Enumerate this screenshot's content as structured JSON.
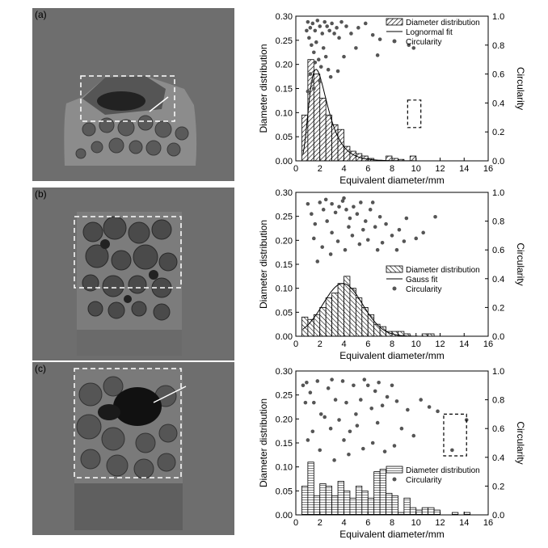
{
  "panel_labels": [
    "(a)",
    "(b)",
    "(c)"
  ],
  "chart_data": [
    {
      "type": "bar",
      "panel": "(a)",
      "xlabel": "Equivalent diameter/mm",
      "ylabel": "Diameter distribution",
      "y2label": "Circularity",
      "xlim": [
        0,
        16
      ],
      "ylim": [
        0,
        0.3
      ],
      "y2lim": [
        0,
        1.0
      ],
      "xticks": [
        "0",
        "2",
        "4",
        "6",
        "8",
        "10",
        "12",
        "14",
        "16"
      ],
      "yticks": [
        "0.00",
        "0.05",
        "0.10",
        "0.15",
        "0.20",
        "0.25",
        "0.30"
      ],
      "y2ticks": [
        "0.0",
        "0.2",
        "0.4",
        "0.6",
        "0.8",
        "1.0"
      ],
      "bin_width": 0.5,
      "bin_starts": [
        0.5,
        1.0,
        1.5,
        2.0,
        2.5,
        3.0,
        3.5,
        4.0,
        4.5,
        5.0,
        5.5,
        6.0,
        6.5,
        7.0,
        7.5,
        8.0,
        8.5,
        9.0,
        9.5
      ],
      "values": [
        0.095,
        0.21,
        0.18,
        0.13,
        0.095,
        0.075,
        0.065,
        0.03,
        0.02,
        0.015,
        0.01,
        0.005,
        0.0,
        0.0,
        0.01,
        0.005,
        0.003,
        0.0,
        0.01
      ],
      "fit": {
        "name": "Lognormal fit",
        "kind": "lognormal",
        "mu": 0.72,
        "sigma": 0.45,
        "scale": 0.3
      },
      "circularity_points": [
        [
          1.0,
          0.96
        ],
        [
          1.2,
          0.92
        ],
        [
          1.4,
          0.95
        ],
        [
          1.6,
          0.9
        ],
        [
          1.8,
          0.97
        ],
        [
          2.0,
          0.93
        ],
        [
          2.2,
          0.88
        ],
        [
          2.4,
          0.96
        ],
        [
          1.1,
          0.85
        ],
        [
          1.3,
          0.8
        ],
        [
          1.5,
          0.75
        ],
        [
          1.7,
          0.82
        ],
        [
          1.9,
          0.7
        ],
        [
          2.1,
          0.65
        ],
        [
          1.2,
          0.6
        ],
        [
          1.4,
          0.55
        ],
        [
          1.6,
          0.68
        ],
        [
          2.3,
          0.78
        ],
        [
          2.6,
          0.93
        ],
        [
          2.8,
          0.9
        ],
        [
          3.0,
          0.95
        ],
        [
          3.2,
          0.88
        ],
        [
          3.4,
          0.92
        ],
        [
          3.6,
          0.85
        ],
        [
          3.8,
          0.96
        ],
        [
          2.5,
          0.72
        ],
        [
          2.7,
          0.63
        ],
        [
          2.9,
          0.58
        ],
        [
          1.0,
          0.48
        ],
        [
          1.5,
          0.5
        ],
        [
          4.2,
          0.93
        ],
        [
          4.6,
          0.88
        ],
        [
          5.2,
          0.92
        ],
        [
          5.8,
          0.95
        ],
        [
          6.4,
          0.87
        ],
        [
          7.0,
          0.84
        ],
        [
          7.8,
          0.95
        ],
        [
          9.4,
          0.8
        ],
        [
          9.8,
          0.78
        ],
        [
          6.8,
          0.73
        ],
        [
          5.0,
          0.78
        ],
        [
          4.0,
          0.72
        ],
        [
          3.5,
          0.62
        ],
        [
          2.0,
          0.55
        ],
        [
          0.9,
          0.9
        ]
      ],
      "highlight_box": {
        "x": [
          9.3,
          10.4
        ],
        "y2": [
          0.23,
          0.42
        ]
      },
      "legend": [
        {
          "label": "Diameter distribution"
        },
        {
          "label": "Lognormal fit"
        },
        {
          "label": "Circularity"
        }
      ],
      "legend_position": "top-right"
    },
    {
      "type": "bar",
      "panel": "(b)",
      "xlabel": "Equivalent diameter/mm",
      "ylabel": "Diameter distribution",
      "y2label": "Circularity",
      "xlim": [
        0,
        16
      ],
      "ylim": [
        0,
        0.3
      ],
      "y2lim": [
        0,
        1.0
      ],
      "xticks": [
        "0",
        "2",
        "4",
        "6",
        "8",
        "10",
        "12",
        "14",
        "16"
      ],
      "yticks": [
        "0.00",
        "0.05",
        "0.10",
        "0.15",
        "0.20",
        "0.25",
        "0.30"
      ],
      "y2ticks": [
        "0.0",
        "0.2",
        "0.4",
        "0.6",
        "0.8",
        "1.0"
      ],
      "bin_width": 0.5,
      "bin_starts": [
        0.5,
        1.0,
        1.5,
        2.0,
        2.5,
        3.0,
        3.5,
        4.0,
        4.5,
        5.0,
        5.5,
        6.0,
        6.5,
        7.0,
        7.5,
        8.0,
        8.5,
        9.0,
        9.5,
        10.0,
        10.5,
        11.0
      ],
      "values": [
        0.04,
        0.035,
        0.045,
        0.06,
        0.08,
        0.09,
        0.11,
        0.125,
        0.1,
        0.08,
        0.06,
        0.045,
        0.025,
        0.02,
        0.01,
        0.01,
        0.01,
        0.005,
        0.0,
        0.0,
        0.005,
        0.005
      ],
      "fit": {
        "name": "Gauss fit",
        "kind": "gauss",
        "mean": 3.9,
        "sd": 1.65,
        "amp": 0.11
      },
      "circularity_points": [
        [
          1.0,
          0.92
        ],
        [
          1.3,
          0.85
        ],
        [
          1.6,
          0.78
        ],
        [
          2.0,
          0.93
        ],
        [
          2.3,
          0.88
        ],
        [
          2.6,
          0.8
        ],
        [
          3.0,
          0.92
        ],
        [
          3.3,
          0.86
        ],
        [
          3.6,
          0.9
        ],
        [
          3.9,
          0.94
        ],
        [
          4.2,
          0.88
        ],
        [
          4.5,
          0.82
        ],
        [
          4.8,
          0.9
        ],
        [
          5.1,
          0.85
        ],
        [
          5.4,
          0.93
        ],
        [
          5.8,
          0.8
        ],
        [
          6.2,
          0.88
        ],
        [
          6.6,
          0.76
        ],
        [
          7.0,
          0.83
        ],
        [
          7.5,
          0.78
        ],
        [
          8.0,
          0.7
        ],
        [
          8.6,
          0.74
        ],
        [
          9.2,
          0.82
        ],
        [
          10.0,
          0.68
        ],
        [
          10.6,
          0.72
        ],
        [
          11.6,
          0.83
        ],
        [
          1.5,
          0.68
        ],
        [
          2.2,
          0.62
        ],
        [
          2.9,
          0.57
        ],
        [
          3.5,
          0.66
        ],
        [
          4.1,
          0.6
        ],
        [
          4.7,
          0.7
        ],
        [
          5.3,
          0.64
        ],
        [
          6.0,
          0.67
        ],
        [
          6.8,
          0.6
        ],
        [
          1.8,
          0.52
        ],
        [
          3.0,
          0.72
        ],
        [
          4.4,
          0.76
        ],
        [
          5.6,
          0.74
        ],
        [
          7.2,
          0.65
        ],
        [
          8.4,
          0.6
        ],
        [
          2.5,
          0.95
        ],
        [
          4.0,
          0.96
        ],
        [
          6.4,
          0.93
        ],
        [
          9.0,
          0.66
        ]
      ],
      "legend": [
        {
          "label": "Diameter distribution"
        },
        {
          "label": "Gauss fit"
        },
        {
          "label": "Circularity"
        }
      ],
      "legend_position": "center-right"
    },
    {
      "type": "bar",
      "panel": "(c)",
      "xlabel": "Equivalent diameter/mm",
      "ylabel": "Diameter distribution",
      "y2label": "Circularity",
      "xlim": [
        0,
        16
      ],
      "ylim": [
        0,
        0.3
      ],
      "y2lim": [
        0,
        1.0
      ],
      "xticks": [
        "0",
        "2",
        "4",
        "6",
        "8",
        "10",
        "12",
        "14",
        "16"
      ],
      "yticks": [
        "0.00",
        "0.05",
        "0.10",
        "0.15",
        "0.20",
        "0.25",
        "0.30"
      ],
      "y2ticks": [
        "0.0",
        "0.2",
        "0.4",
        "0.6",
        "0.8",
        "1.0"
      ],
      "bin_width": 0.5,
      "bin_starts": [
        0.5,
        1.0,
        1.5,
        2.0,
        2.5,
        3.0,
        3.5,
        4.0,
        4.5,
        5.0,
        5.5,
        6.0,
        6.5,
        7.0,
        7.5,
        8.0,
        8.5,
        9.0,
        9.5,
        10.0,
        10.5,
        11.0,
        11.5,
        12.0,
        12.5,
        13.0,
        13.5,
        14.0
      ],
      "values": [
        0.06,
        0.11,
        0.04,
        0.065,
        0.06,
        0.04,
        0.07,
        0.05,
        0.035,
        0.06,
        0.05,
        0.035,
        0.09,
        0.095,
        0.045,
        0.04,
        0.005,
        0.035,
        0.015,
        0.01,
        0.015,
        0.015,
        0.01,
        0.0,
        0.0,
        0.005,
        0.0,
        0.005
      ],
      "fit": null,
      "circularity_points": [
        [
          0.6,
          0.9
        ],
        [
          0.9,
          0.92
        ],
        [
          1.2,
          0.85
        ],
        [
          1.5,
          0.78
        ],
        [
          1.8,
          0.93
        ],
        [
          2.1,
          0.7
        ],
        [
          2.4,
          0.68
        ],
        [
          2.7,
          0.88
        ],
        [
          3.0,
          0.94
        ],
        [
          3.3,
          0.8
        ],
        [
          3.6,
          0.66
        ],
        [
          3.9,
          0.93
        ],
        [
          4.2,
          0.78
        ],
        [
          4.5,
          0.58
        ],
        [
          4.8,
          0.9
        ],
        [
          5.1,
          0.62
        ],
        [
          5.4,
          0.8
        ],
        [
          5.7,
          0.94
        ],
        [
          6.0,
          0.9
        ],
        [
          6.3,
          0.74
        ],
        [
          6.6,
          0.86
        ],
        [
          6.9,
          0.92
        ],
        [
          7.2,
          0.76
        ],
        [
          7.6,
          0.82
        ],
        [
          8.0,
          0.9
        ],
        [
          8.4,
          0.79
        ],
        [
          8.8,
          0.6
        ],
        [
          9.3,
          0.73
        ],
        [
          9.8,
          0.55
        ],
        [
          10.4,
          0.8
        ],
        [
          11.1,
          0.75
        ],
        [
          11.8,
          0.72
        ],
        [
          14.2,
          0.66
        ],
        [
          13.0,
          0.45
        ],
        [
          1.0,
          0.52
        ],
        [
          2.0,
          0.45
        ],
        [
          3.2,
          0.38
        ],
        [
          4.4,
          0.42
        ],
        [
          5.6,
          0.46
        ],
        [
          6.4,
          0.5
        ],
        [
          7.4,
          0.44
        ],
        [
          8.2,
          0.48
        ],
        [
          2.9,
          0.6
        ],
        [
          5.0,
          0.7
        ],
        [
          6.8,
          0.64
        ],
        [
          1.4,
          0.58
        ],
        [
          0.8,
          0.78
        ],
        [
          4.0,
          0.52
        ]
      ],
      "highlight_box": {
        "x": [
          12.3,
          14.2
        ],
        "y2": [
          0.41,
          0.7
        ]
      },
      "legend": [
        {
          "label": "Diameter distribution"
        },
        {
          "label": "Circularity"
        }
      ],
      "legend_position": "center-right"
    }
  ]
}
